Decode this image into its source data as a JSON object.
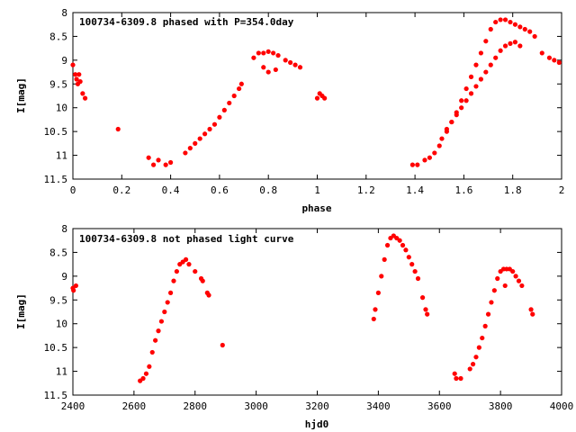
{
  "chart_data": [
    {
      "type": "scatter",
      "title": "100734-6309.8 phased with P=354.0day",
      "xlabel": "phase",
      "ylabel": "I[mag]",
      "xlim": [
        0,
        2
      ],
      "ylim": [
        8,
        11.5
      ],
      "y_inverted": true,
      "grid": false,
      "marker_color": "#ff0000",
      "x_ticks": [
        "0",
        "0.2",
        "0.4",
        "0.6",
        "0.8",
        "1",
        "1.2",
        "1.4",
        "1.6",
        "1.8",
        "2"
      ],
      "y_ticks": [
        "8",
        "8.5",
        "9",
        "9.5",
        "10",
        "10.5",
        "11",
        "11.5"
      ],
      "x_tick_values": [
        0,
        0.2,
        0.4,
        0.6,
        0.8,
        1.0,
        1.2,
        1.4,
        1.6,
        1.8,
        2.0
      ],
      "y_tick_values": [
        8,
        8.5,
        9,
        9.5,
        10,
        10.5,
        11,
        11.5
      ],
      "series": [
        {
          "x": [
            0.0,
            0.01,
            0.015,
            0.02,
            0.025,
            0.03,
            0.04,
            0.05,
            0.185,
            0.31,
            0.33,
            0.35,
            0.38,
            0.4,
            0.46,
            0.48,
            0.5,
            0.52,
            0.54,
            0.56,
            0.58,
            0.6,
            0.62,
            0.64,
            0.66,
            0.68,
            0.69,
            0.74,
            0.76,
            0.78,
            0.8,
            0.82,
            0.84,
            0.78,
            0.8,
            0.83,
            0.87,
            0.89,
            0.91,
            0.93,
            1.0,
            1.01,
            1.02,
            1.03,
            1.39,
            1.41,
            1.44,
            1.46,
            1.48,
            1.5,
            1.51,
            1.53,
            1.55,
            1.57,
            1.59,
            1.61,
            1.63,
            1.65,
            1.67,
            1.69,
            1.71,
            1.73,
            1.75,
            1.77,
            1.79,
            1.81,
            1.83,
            1.85,
            1.87,
            1.89,
            1.92,
            1.95,
            1.97,
            1.99,
            1.53,
            1.55,
            1.57,
            1.59,
            1.61,
            1.63,
            1.65,
            1.67,
            1.69,
            1.71,
            1.73,
            1.75,
            1.77,
            1.79,
            1.81,
            1.83
          ],
          "y": [
            9.1,
            9.3,
            9.4,
            9.5,
            9.3,
            9.45,
            9.7,
            9.8,
            10.45,
            11.05,
            11.2,
            11.1,
            11.2,
            11.15,
            10.95,
            10.85,
            10.75,
            10.65,
            10.55,
            10.45,
            10.35,
            10.2,
            10.05,
            9.9,
            9.75,
            9.6,
            9.5,
            8.95,
            8.85,
            8.85,
            8.82,
            8.85,
            8.9,
            9.15,
            9.25,
            9.2,
            9.0,
            9.05,
            9.1,
            9.15,
            9.8,
            9.7,
            9.75,
            9.8,
            11.2,
            11.2,
            11.1,
            11.05,
            10.95,
            10.8,
            10.65,
            10.5,
            10.3,
            10.1,
            9.85,
            9.6,
            9.35,
            9.1,
            8.85,
            8.6,
            8.35,
            8.2,
            8.15,
            8.15,
            8.2,
            8.25,
            8.3,
            8.35,
            8.4,
            8.5,
            8.85,
            8.95,
            9.0,
            9.05,
            10.45,
            10.3,
            10.15,
            10.0,
            9.85,
            9.7,
            9.55,
            9.4,
            9.25,
            9.1,
            8.95,
            8.8,
            8.7,
            8.65,
            8.62,
            8.7
          ]
        }
      ]
    },
    {
      "type": "scatter",
      "title": "100734-6309.8 not phased light curve",
      "xlabel": "hjd0",
      "ylabel": "I[mag]",
      "xlim": [
        2400,
        4000
      ],
      "ylim": [
        8,
        11.5
      ],
      "y_inverted": true,
      "grid": false,
      "marker_color": "#ff0000",
      "x_ticks": [
        "2400",
        "2600",
        "2800",
        "3000",
        "3200",
        "3400",
        "3600",
        "3800",
        "4000"
      ],
      "y_ticks": [
        "8",
        "8.5",
        "9",
        "9.5",
        "10",
        "10.5",
        "11",
        "11.5"
      ],
      "x_tick_values": [
        2400,
        2600,
        2800,
        3000,
        3200,
        3400,
        3600,
        3800,
        4000
      ],
      "y_tick_values": [
        8,
        8.5,
        9,
        9.5,
        10,
        10.5,
        11,
        11.5
      ],
      "series": [
        {
          "x": [
            2400,
            2402,
            2410,
            2620,
            2630,
            2640,
            2650,
            2660,
            2670,
            2680,
            2690,
            2700,
            2710,
            2720,
            2730,
            2740,
            2750,
            2760,
            2770,
            2780,
            2800,
            2820,
            2825,
            2840,
            2845,
            2890,
            3385,
            3390,
            3400,
            3410,
            3420,
            3430,
            3440,
            3450,
            3460,
            3470,
            3480,
            3490,
            3500,
            3510,
            3520,
            3530,
            3545,
            3555,
            3560,
            3650,
            3655,
            3670,
            3700,
            3710,
            3720,
            3730,
            3740,
            3750,
            3760,
            3770,
            3780,
            3790,
            3800,
            3810,
            3815,
            3820,
            3830,
            3840,
            3850,
            3860,
            3870,
            3900,
            3905
          ],
          "y": [
            9.25,
            9.3,
            9.2,
            11.2,
            11.15,
            11.05,
            10.9,
            10.6,
            10.35,
            10.15,
            9.95,
            9.75,
            9.55,
            9.35,
            9.1,
            8.9,
            8.75,
            8.7,
            8.65,
            8.75,
            8.9,
            9.05,
            9.1,
            9.35,
            9.4,
            10.45,
            9.9,
            9.7,
            9.35,
            9.0,
            8.65,
            8.35,
            8.2,
            8.15,
            8.2,
            8.25,
            8.35,
            8.45,
            8.6,
            8.75,
            8.9,
            9.05,
            9.45,
            9.7,
            9.8,
            11.05,
            11.15,
            11.15,
            10.95,
            10.85,
            10.7,
            10.5,
            10.3,
            10.05,
            9.8,
            9.55,
            9.3,
            9.05,
            8.9,
            8.85,
            9.2,
            8.85,
            8.85,
            8.9,
            9.0,
            9.1,
            9.2,
            9.7,
            9.8
          ]
        }
      ]
    }
  ]
}
